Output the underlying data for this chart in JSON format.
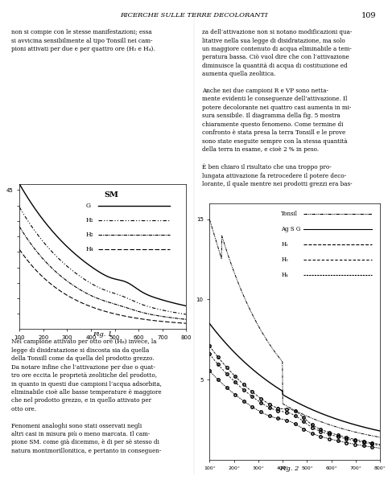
{
  "page_title": "RICERCHE SULLE TERRE DECOLORANTI",
  "page_number": "109",
  "fig1_title": "SM",
  "fig1_legend": {
    "G": "solid",
    "H₁": "dashdot_fine",
    "H₂": "dash_dot",
    "H₄": "dash_dash"
  },
  "fig2_legend": {
    "Tonsil": "dashdot_fine",
    "Ag S G": "solid",
    "H₁": "circle_dash",
    "H₂": "circle_dash2",
    "H₄": "circle_dash3"
  },
  "fig1_xlabel": "",
  "fig1_ylabel": "",
  "fig2_xlabel": "",
  "fig2_ylabel": "",
  "fig1_caption": "Fig. 1",
  "fig2_caption": "Fig. 2",
  "text_left_col": "non si compie con le stesse manifestazioni; essa\nsi avvicina sensibilmente al tipo Tonsill nei cam-\npioni attivati per due e per quattro ore (H₂ e H₄).\n\nNel campione attivato per otto ore (H₈) invece, la\nlegge di disidratazione si discosta sia da quella\ndella Tonsill come da quella del prodotto grezzo.\nDa notare infine che l’attivazione per due o quat-\ntro ore eccita le proprietà zeolitiche del prodotto,\nin quanto in questi due campioni l’acqua adsorbita,\neliminabile cioè alle basse temperature è maggiore\nche nel prodotto grezzo, e in quello attivato per\notto ore.\n\nFenomeni analoghi sono stati osservati negli\naltri casi in misura più o meno marcata. Il cam-\npione SM. come già dicemmo, è di per sè stesso di\nnatura montmorillonitica, e pertanto in conseguen-",
  "text_right_col": "za dell’attivazione non si notano modificazioni qua-\nlitative nella sua legge di disidratazione, ma solo\nun maggiore contenuto di acqua eliminabile a tem-\nperatura bassa. Ciò vuol dire che con l’attivazione\ndiminuisce la quantità di acqua di costituzione ed\naumenta quella zeolitica.\n\nAnche nei due campioni R e VP sono netta-\nmente evidenti le conseguenze dell’attivazione. Il\npotere decolorante nei quattro casi aumenta in mi-\nsura sensibile. Il diagramma della fig. 5 mostra\nchiaramente questo fenomeno. Come termine di\nconfronto è stata presa la terra Tonsill e le prove\nsono state eseguite sempre con la stessa quantità\ndella terra in esame, e cioè 2 % in peso.\n\nÈ ben chiaro il risultato che una troppo pro-\nlungata attivazione fa retrocedere il potere deco-\nlorante, il quale mentre nei prodotti grezzi era bas-"
}
